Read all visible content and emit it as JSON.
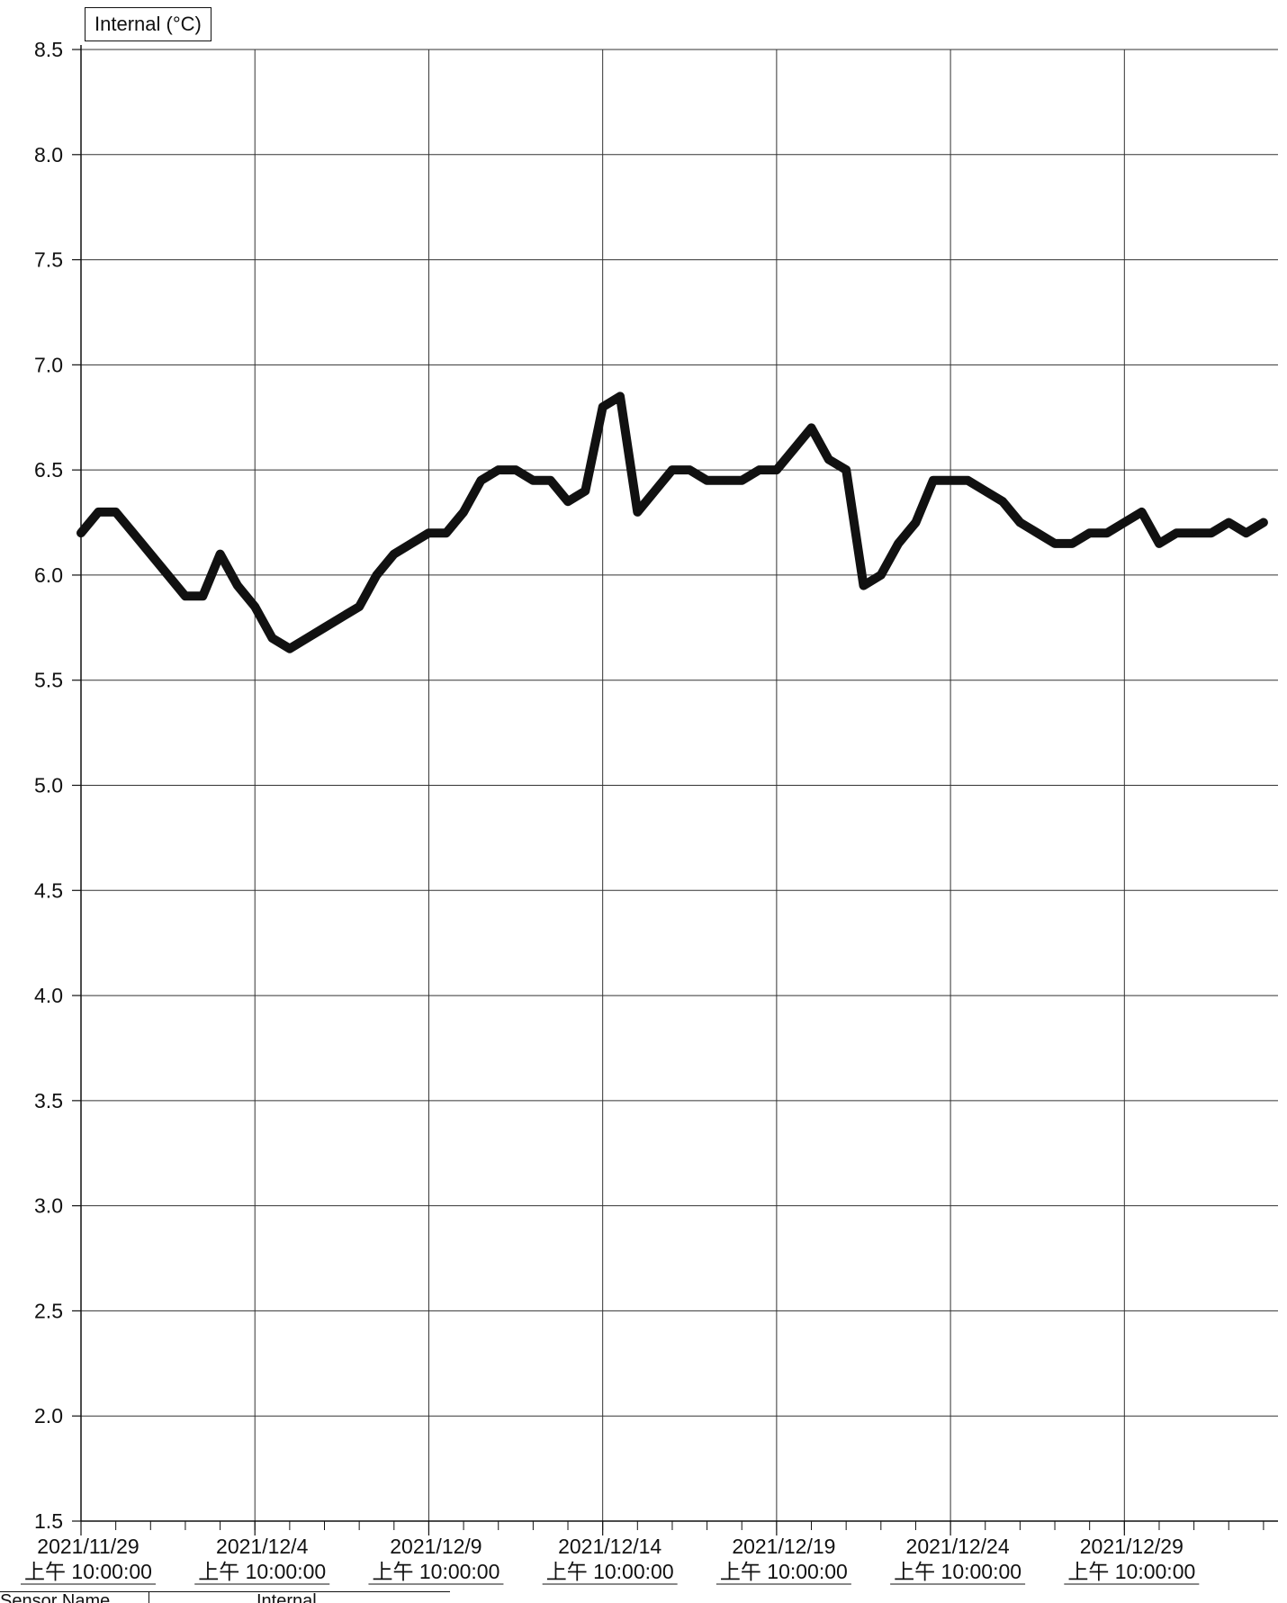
{
  "legend": {
    "label": "Internal (°C)"
  },
  "table": {
    "col1": "Sensor Name",
    "col2": "Internal"
  },
  "colors": {
    "line": "#111111",
    "grid": "#333333"
  },
  "chart_data": {
    "type": "line",
    "title": "",
    "xlabel": "",
    "ylabel": "",
    "ylim": [
      1.5,
      8.5
    ],
    "yticks": [
      1.5,
      2.0,
      2.5,
      3.0,
      3.5,
      4.0,
      4.5,
      5.0,
      5.5,
      6.0,
      6.5,
      7.0,
      7.5,
      8.0,
      8.5
    ],
    "ytick_labels": [
      "1.5",
      "2.0",
      "2.5",
      "3.0",
      "3.5",
      "4.0",
      "4.5",
      "5.0",
      "5.5",
      "6.0",
      "6.5",
      "7.0",
      "7.5",
      "8.0",
      "8.5"
    ],
    "xlim": [
      "2021-11-29 10:00",
      "2022-01-02 20:00"
    ],
    "xticks": [
      "2021-11-29 10:00",
      "2021-12-04 10:00",
      "2021-12-09 10:00",
      "2021-12-14 10:00",
      "2021-12-19 10:00",
      "2021-12-24 10:00",
      "2021-12-29 10:00"
    ],
    "xtick_labels_date": [
      "2021/11/29",
      "2021/12/4",
      "2021/12/9",
      "2021/12/14",
      "2021/12/19",
      "2021/12/24",
      "2021/12/29"
    ],
    "xtick_labels_time": [
      "上午 10:00:00",
      "上午 10:00:00",
      "上午 10:00:00",
      "上午 10:00:00",
      "上午 10:00:00",
      "上午 10:00:00",
      "上午 10:00:00"
    ],
    "grid": true,
    "legend": "top-left",
    "series": [
      {
        "name": "Internal (°C)",
        "x": [
          "2021-11-29 10:00",
          "2021-11-29 22:00",
          "2021-11-30 10:00",
          "2021-11-30 22:00",
          "2021-12-01 10:00",
          "2021-12-01 22:00",
          "2021-12-02 10:00",
          "2021-12-02 22:00",
          "2021-12-03 10:00",
          "2021-12-03 22:00",
          "2021-12-04 10:00",
          "2021-12-04 22:00",
          "2021-12-05 10:00",
          "2021-12-05 22:00",
          "2021-12-06 10:00",
          "2021-12-06 22:00",
          "2021-12-07 10:00",
          "2021-12-07 22:00",
          "2021-12-08 10:00",
          "2021-12-08 22:00",
          "2021-12-09 10:00",
          "2021-12-09 22:00",
          "2021-12-10 10:00",
          "2021-12-10 22:00",
          "2021-12-11 10:00",
          "2021-12-11 22:00",
          "2021-12-12 10:00",
          "2021-12-12 22:00",
          "2021-12-13 10:00",
          "2021-12-13 22:00",
          "2021-12-14 10:00",
          "2021-12-14 22:00",
          "2021-12-15 10:00",
          "2021-12-15 22:00",
          "2021-12-16 10:00",
          "2021-12-16 22:00",
          "2021-12-17 10:00",
          "2021-12-17 22:00",
          "2021-12-18 10:00",
          "2021-12-18 22:00",
          "2021-12-19 10:00",
          "2021-12-19 22:00",
          "2021-12-20 10:00",
          "2021-12-20 22:00",
          "2021-12-21 10:00",
          "2021-12-21 22:00",
          "2021-12-22 10:00",
          "2021-12-22 22:00",
          "2021-12-23 10:00",
          "2021-12-23 22:00",
          "2021-12-24 10:00",
          "2021-12-24 22:00",
          "2021-12-25 10:00",
          "2021-12-25 22:00",
          "2021-12-26 10:00",
          "2021-12-26 22:00",
          "2021-12-27 10:00",
          "2021-12-27 22:00",
          "2021-12-28 10:00",
          "2021-12-28 22:00",
          "2021-12-29 10:00",
          "2021-12-29 22:00",
          "2021-12-30 10:00",
          "2021-12-30 22:00",
          "2021-12-31 10:00",
          "2021-12-31 22:00",
          "2022-01-01 10:00",
          "2022-01-01 22:00",
          "2022-01-02 10:00"
        ],
        "y": [
          6.2,
          6.3,
          6.3,
          6.2,
          6.1,
          6.0,
          5.9,
          5.9,
          6.1,
          5.95,
          5.85,
          5.7,
          5.65,
          5.7,
          5.75,
          5.8,
          5.85,
          6.0,
          6.1,
          6.15,
          6.2,
          6.2,
          6.3,
          6.45,
          6.5,
          6.5,
          6.45,
          6.45,
          6.35,
          6.4,
          6.8,
          6.85,
          6.3,
          6.4,
          6.5,
          6.5,
          6.45,
          6.45,
          6.45,
          6.5,
          6.5,
          6.6,
          6.7,
          6.55,
          6.5,
          5.95,
          6.0,
          6.15,
          6.25,
          6.45,
          6.45,
          6.45,
          6.4,
          6.35,
          6.25,
          6.2,
          6.15,
          6.15,
          6.2,
          6.2,
          6.25,
          6.3,
          6.15,
          6.2,
          6.2,
          6.2,
          6.25,
          6.2,
          6.25
        ]
      }
    ]
  }
}
